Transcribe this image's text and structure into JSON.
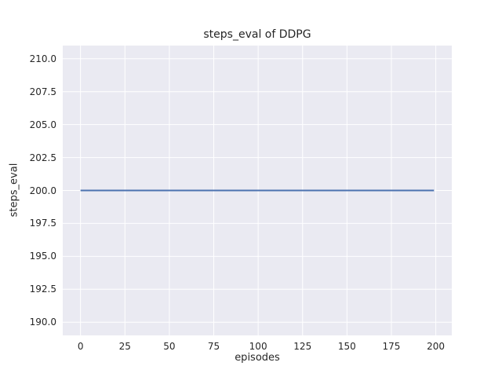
{
  "chart_data": {
    "type": "line",
    "title": "steps_eval of DDPG",
    "xlabel": "episodes",
    "ylabel": "steps_eval",
    "xlim": [
      -10,
      209
    ],
    "ylim": [
      189,
      211
    ],
    "x_ticks": [
      0,
      25,
      50,
      75,
      100,
      125,
      150,
      175,
      200
    ],
    "x_tick_labels": [
      "0",
      "25",
      "50",
      "75",
      "100",
      "125",
      "150",
      "175",
      "200"
    ],
    "y_ticks": [
      190.0,
      192.5,
      195.0,
      197.5,
      200.0,
      202.5,
      205.0,
      207.5,
      210.0
    ],
    "y_tick_labels": [
      "190.0",
      "192.5",
      "195.0",
      "197.5",
      "200.0",
      "202.5",
      "205.0",
      "207.5",
      "210.0"
    ],
    "grid": true,
    "legend": "none",
    "series": [
      {
        "name": "DDPG",
        "constant_value": 200,
        "x": [
          0,
          199
        ],
        "y": [
          200,
          200
        ]
      }
    ],
    "style": {
      "plot_background": "#eaeaf2",
      "grid_color": "#ffffff",
      "line_color": "#4c72b0",
      "text_color": "#262626"
    }
  }
}
